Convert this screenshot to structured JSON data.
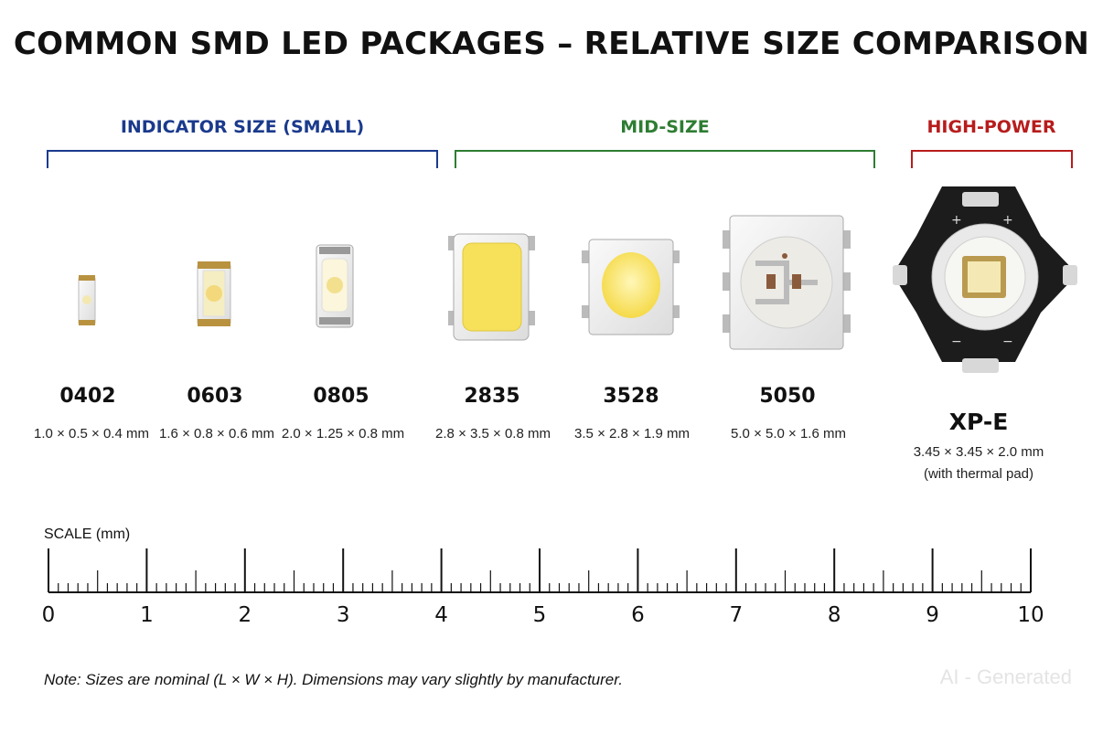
{
  "title": "COMMON SMD LED PACKAGES – RELATIVE SIZE COMPARISON",
  "groups": [
    {
      "label": "INDICATOR SIZE (SMALL)",
      "color": "#1a3a8c"
    },
    {
      "label": "MID-SIZE",
      "color": "#2e7d32"
    },
    {
      "label": "HIGH-POWER",
      "color": "#b71c1c"
    }
  ],
  "packages": [
    {
      "name": "0402",
      "dims": "1.0 × 0.5 × 0.4 mm"
    },
    {
      "name": "0603",
      "dims": "1.6 × 0.8 × 0.6 mm"
    },
    {
      "name": "0805",
      "dims": "2.0 × 1.25 × 0.8 mm"
    },
    {
      "name": "2835",
      "dims": "2.8 × 3.5 × 0.8 mm"
    },
    {
      "name": "3528",
      "dims": "3.5 × 2.8 × 1.9 mm"
    },
    {
      "name": "5050",
      "dims": "5.0 × 5.0 × 1.6 mm"
    },
    {
      "name": "XP-E",
      "dims": "3.45 × 3.45 × 2.0 mm",
      "note": "(with thermal pad)"
    }
  ],
  "scale": {
    "label": "SCALE  (mm)",
    "numbers": [
      "0",
      "1",
      "2",
      "3",
      "4",
      "5",
      "6",
      "7",
      "8",
      "9",
      "10"
    ]
  },
  "note": "Note: Sizes are nominal (L × W × H). Dimensions may vary slightly by manufacturer.",
  "watermark": "AI - Generated",
  "colors": {
    "led_yellow": "#f7e05a",
    "pcb_black": "#1c1c1c",
    "pad_gold": "#c9a24a"
  }
}
